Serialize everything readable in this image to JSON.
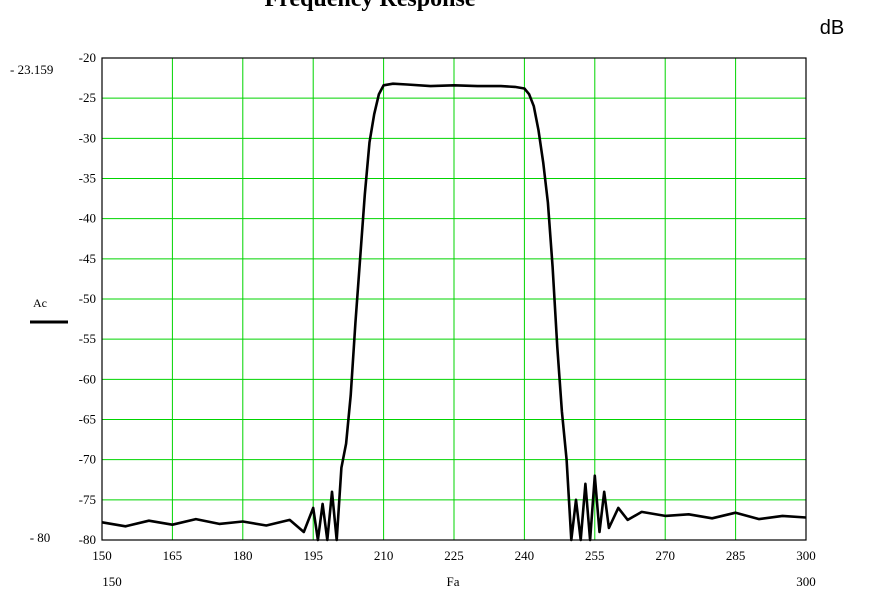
{
  "chart_data": {
    "type": "line",
    "title": "Frequency Response",
    "unit": "dB",
    "xlabel": "Fa",
    "ylabel": "Ac",
    "xlim": [
      150,
      300
    ],
    "ylim": [
      -80,
      -20
    ],
    "x_ticks": [
      150,
      165,
      180,
      195,
      210,
      225,
      240,
      255,
      270,
      285,
      300
    ],
    "y_ticks": [
      -20,
      -25,
      -30,
      -35,
      -40,
      -45,
      -50,
      -55,
      -60,
      -65,
      -70,
      -75,
      -80
    ],
    "x_range_labels": [
      "150",
      "300"
    ],
    "y_range_labels": [
      "- 23.159",
      "- 80"
    ],
    "grid": true,
    "series": [
      {
        "name": "Ac",
        "x": [
          150,
          155,
          160,
          165,
          170,
          175,
          180,
          185,
          190,
          193,
          195,
          196,
          197,
          198,
          199,
          200,
          201,
          202,
          203,
          204,
          205,
          206,
          207,
          208,
          209,
          210,
          212,
          215,
          220,
          225,
          230,
          235,
          238,
          240,
          241,
          242,
          243,
          244,
          245,
          246,
          247,
          248,
          249,
          250,
          251,
          252,
          253,
          254,
          255,
          256,
          257,
          258,
          260,
          262,
          265,
          270,
          275,
          280,
          285,
          290,
          295,
          300
        ],
        "y": [
          -77.8,
          -78.3,
          -77.6,
          -78.1,
          -77.4,
          -78.0,
          -77.7,
          -78.2,
          -77.5,
          -79.0,
          -76.0,
          -80.0,
          -75.5,
          -80.0,
          -74.0,
          -80.0,
          -71.0,
          -68.0,
          -62.0,
          -53.0,
          -45.0,
          -37.0,
          -30.5,
          -27.0,
          -24.5,
          -23.4,
          -23.2,
          -23.3,
          -23.5,
          -23.4,
          -23.5,
          -23.5,
          -23.6,
          -23.8,
          -24.5,
          -26.0,
          -29.0,
          -33.0,
          -38.0,
          -46.0,
          -56.0,
          -64.0,
          -70.0,
          -80.0,
          -75.0,
          -80.0,
          -73.0,
          -80.0,
          -72.0,
          -79.0,
          -74.0,
          -78.5,
          -76.0,
          -77.5,
          -76.5,
          -77.0,
          -76.8,
          -77.3,
          -76.6,
          -77.4,
          -77.0,
          -77.2
        ]
      }
    ],
    "colors": {
      "grid": "#00d400",
      "line": "#000000",
      "axis": "#000000"
    }
  }
}
